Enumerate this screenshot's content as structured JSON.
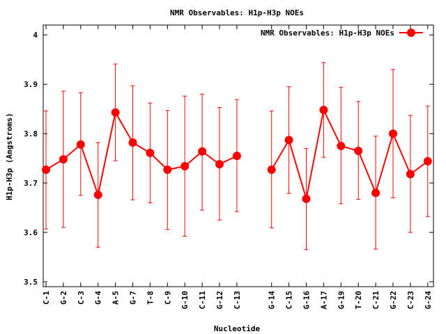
{
  "chart_data": {
    "type": "line",
    "title": "NMR Observables: H1p-H3p NOEs",
    "xlabel": "Nucleotide",
    "ylabel": "H1p-H3p (Angstroms)",
    "ylim": [
      3.49,
      4.02
    ],
    "yticks": [
      3.5,
      3.6,
      3.7,
      3.8,
      3.9,
      4.0
    ],
    "ytick_labels": [
      "3.5",
      "3.6",
      "3.7",
      "3.8",
      "3.9",
      "4"
    ],
    "legend": {
      "label": "NMR Observables: H1p-H3p NOEs",
      "position": "top-right"
    },
    "color": "#ff0000",
    "grid": false,
    "categories": [
      "C-1",
      "G-2",
      "C-3",
      "G-4",
      "A-5",
      "G-7",
      "T-8",
      "C-9",
      "G-10",
      "C-11",
      "G-12",
      "C-13",
      "",
      "G-14",
      "C-15",
      "G-16",
      "A-17",
      "G-19",
      "T-20",
      "C-21",
      "G-22",
      "C-23",
      "G-24"
    ],
    "series": [
      {
        "name": "NMR Observables: H1p-H3p NOEs",
        "values": [
          3.727,
          3.748,
          3.778,
          3.676,
          3.843,
          3.782,
          3.761,
          3.727,
          3.734,
          3.764,
          3.738,
          3.755,
          null,
          3.727,
          3.787,
          3.668,
          3.848,
          3.775,
          3.765,
          3.68,
          3.8,
          3.718,
          3.744
        ],
        "err_low": [
          3.607,
          3.61,
          3.675,
          3.57,
          3.745,
          3.666,
          3.66,
          3.606,
          3.592,
          3.645,
          3.625,
          3.642,
          null,
          3.609,
          3.679,
          3.565,
          3.752,
          3.658,
          3.667,
          3.566,
          3.67,
          3.6,
          3.632
        ],
        "err_high": [
          3.846,
          3.886,
          3.883,
          3.782,
          3.941,
          3.897,
          3.862,
          3.847,
          3.876,
          3.88,
          3.853,
          3.869,
          null,
          3.846,
          3.895,
          3.77,
          3.944,
          3.894,
          3.865,
          3.795,
          3.93,
          3.837,
          3.856
        ]
      }
    ]
  }
}
